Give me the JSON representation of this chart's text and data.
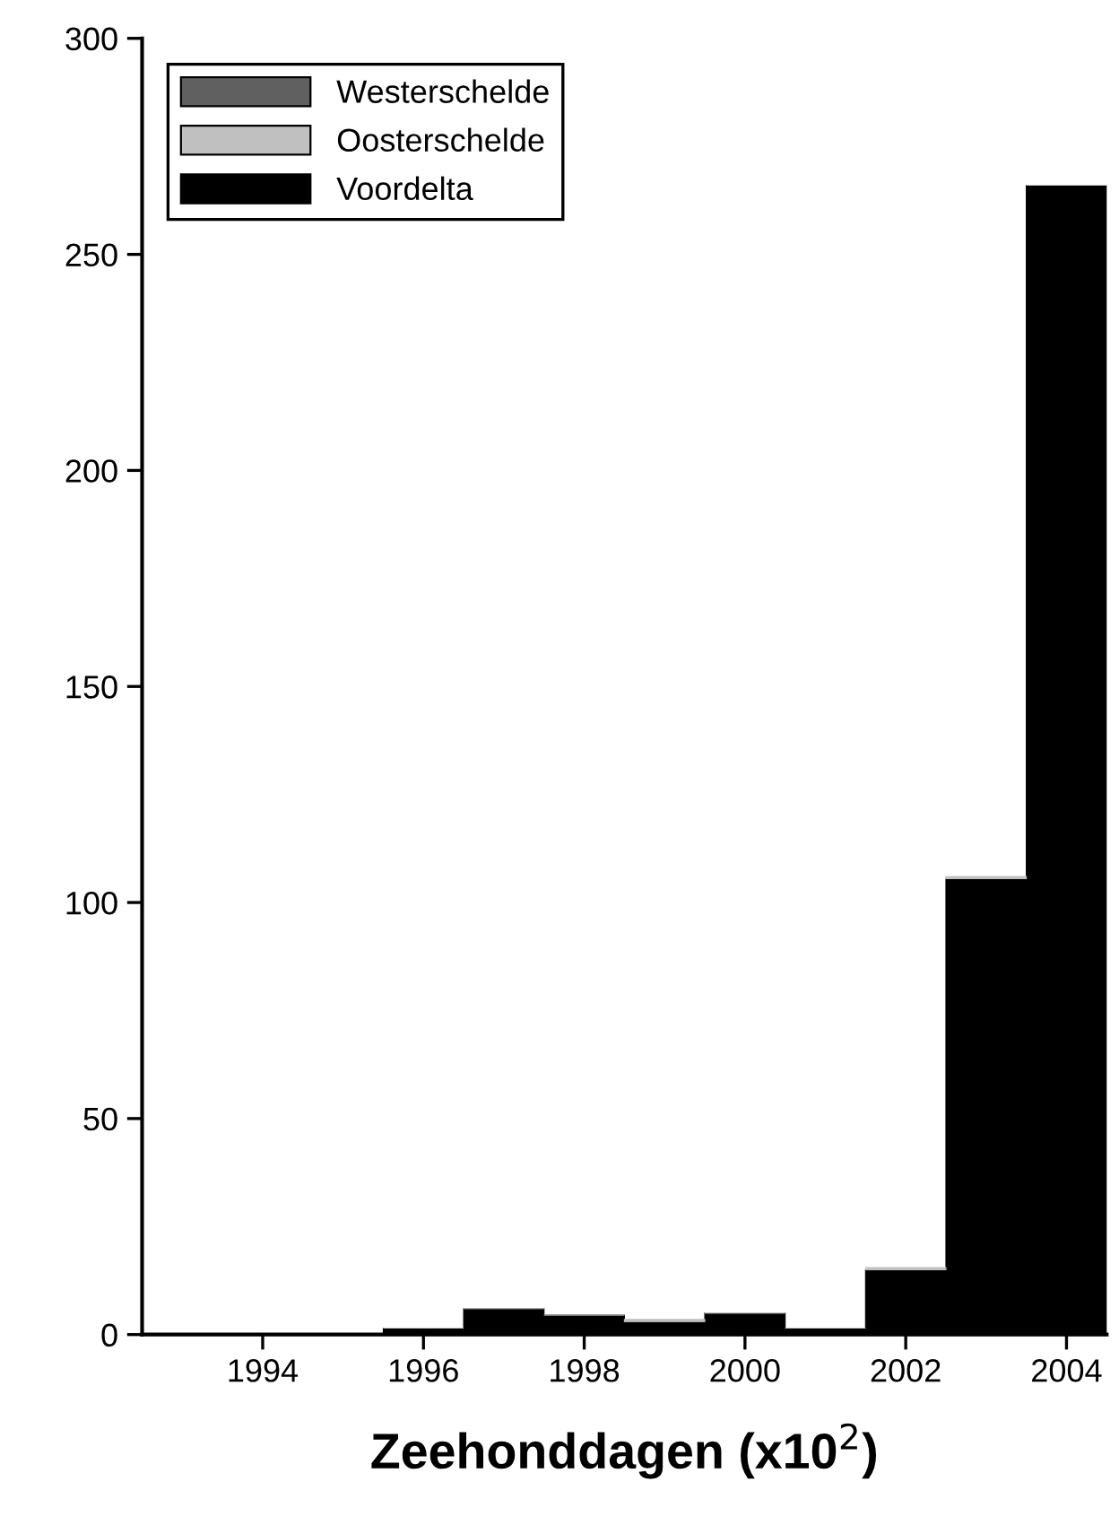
{
  "chart_data": {
    "type": "bar",
    "stacked": true,
    "xlabel": "Zeehonddagen (x10$^{2}$)",
    "x": [
      1993,
      1994,
      1995,
      1996,
      1997,
      1998,
      1999,
      2000,
      2001,
      2002,
      2003,
      2004
    ],
    "series": [
      {
        "name": "Voordelta",
        "color": "#000000",
        "values": [
          0,
          0,
          0,
          1.5,
          6,
          4.5,
          3,
          5,
          1.5,
          15,
          105.5,
          266
        ]
      },
      {
        "name": "Westerschelde",
        "color": "#606060",
        "values": [
          0,
          0,
          0,
          0,
          0,
          0,
          0,
          0,
          0,
          0,
          0,
          0
        ]
      },
      {
        "name": "Oosterschelde",
        "color": "#c0c0c0",
        "values": [
          0,
          0,
          0,
          0,
          0,
          0,
          0.5,
          0,
          0,
          0.5,
          0.5,
          0
        ]
      }
    ],
    "xlim": [
      1992.5,
      2004.5
    ],
    "xticks": [
      1994,
      1996,
      1998,
      2000,
      2002,
      2004
    ],
    "ylim": [
      0,
      300
    ],
    "yticks": [
      0,
      50,
      100,
      150,
      200,
      250,
      300
    ],
    "grid": false,
    "legend": "top left"
  }
}
